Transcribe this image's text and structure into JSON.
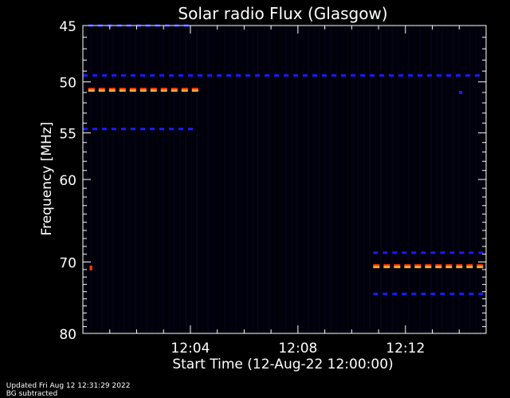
{
  "chart_data": {
    "type": "heatmap",
    "title": "Solar radio Flux (Glasgow)",
    "xlabel": "Start Time (12-Aug-22 12:00:00)",
    "ylabel": "Frequency [MHz]",
    "x_unit": "minutes after 12:00:00",
    "xlim": [
      0,
      15
    ],
    "ylim": [
      45,
      80
    ],
    "y_axis_inverted": true,
    "y_scale": "log",
    "x_ticks": [
      {
        "value": 4,
        "label": "12:04"
      },
      {
        "value": 8,
        "label": "12:08"
      },
      {
        "value": 12,
        "label": "12:12"
      }
    ],
    "y_ticks": [
      45,
      50,
      55,
      60,
      70,
      80
    ],
    "background_color": "#00000a",
    "colors": {
      "frame": "#ffffff",
      "weak": "#1a1aff",
      "medium": "#ff3300",
      "strong": "#ffaa33"
    },
    "features": [
      {
        "freq_mhz": 45.0,
        "t_start": 0.2,
        "t_end": 4.0,
        "intensity": "weak"
      },
      {
        "freq_mhz": 49.4,
        "t_start": 0.0,
        "t_end": 15.0,
        "intensity": "weak"
      },
      {
        "freq_mhz": 50.7,
        "t_start": 0.2,
        "t_end": 4.2,
        "intensity": "strong"
      },
      {
        "freq_mhz": 51.0,
        "t_start": 14.0,
        "t_end": 14.1,
        "intensity": "weak"
      },
      {
        "freq_mhz": 54.6,
        "t_start": 0.0,
        "t_end": 4.3,
        "intensity": "weak"
      },
      {
        "freq_mhz": 68.8,
        "t_start": 10.8,
        "t_end": 15.0,
        "intensity": "weak"
      },
      {
        "freq_mhz": 70.5,
        "t_start": 10.8,
        "t_end": 15.0,
        "intensity": "strong"
      },
      {
        "freq_mhz": 70.8,
        "t_start": 0.25,
        "t_end": 0.35,
        "intensity": "medium"
      },
      {
        "freq_mhz": 74.3,
        "t_start": 10.8,
        "t_end": 14.8,
        "intensity": "weak"
      }
    ]
  },
  "footer": {
    "updated": "Updated Fri Aug 12 12:31:29 2022",
    "note": "BG subtracted"
  }
}
